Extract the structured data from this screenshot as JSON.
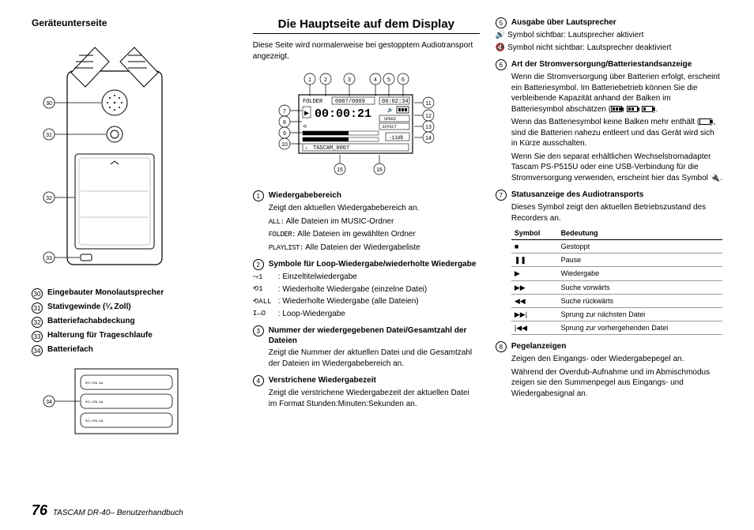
{
  "footer": {
    "page_num": "76",
    "book_title": "TASCAM DR-40– Benutzerhandbuch"
  },
  "col1": {
    "heading": "Geräteunterseite",
    "callouts": [
      {
        "n": "30",
        "label": "Eingebauter Monolautsprecher"
      },
      {
        "n": "31",
        "label": "Stativgewinde (¼ Zoll)"
      },
      {
        "n": "32",
        "label": "Batteriefachabdeckung"
      },
      {
        "n": "33",
        "label": "Halterung für Trageschlaufe"
      },
      {
        "n": "34",
        "label": "Batteriefach"
      }
    ]
  },
  "col2": {
    "section_title": "Die Hauptseite auf dem Display",
    "intro": "Diese Seite wird normalerweise bei gestopptem Audiotransport angezeigt.",
    "lcd": {
      "time": "00:00:21",
      "folder": "FOLDER",
      "count": "0007/0009",
      "dur": "00:02:34",
      "speed": "SPEED",
      "effect": "EFFECT",
      "db": "-11dB",
      "file": "TASCAM_0007"
    },
    "nums_top": [
      "1",
      "2",
      "3",
      "4",
      "5",
      "6"
    ],
    "nums_left": [
      "7",
      "8",
      "9",
      "10"
    ],
    "nums_right": [
      "11",
      "12",
      "13",
      "14"
    ],
    "nums_bottom": [
      "15",
      "16"
    ],
    "items": [
      {
        "n": "1",
        "title": "Wiedergabebereich",
        "lines": [
          "Zeigt den aktuellen Wiedergabebereich an.",
          {
            "mono": "ALL:",
            "text": " Alle Dateien im MUSIC-Ordner"
          },
          {
            "mono": "FOLDER:",
            "text": " Alle Dateien im gewählten Ordner"
          },
          {
            "mono": "PLAYLIST:",
            "text": " Alle Dateien der Wiedergabeliste"
          }
        ]
      },
      {
        "n": "2",
        "title": "Symbole für Loop-Wiedergabe/wiederholte Wiedergabe",
        "subs": [
          {
            "sym": "⤳1",
            "text": ": Einzeltitelwiedergabe"
          },
          {
            "sym": "⟲1",
            "text": ": Wiederholte Wiedergabe (einzelne Datei)"
          },
          {
            "sym": "⟲ALL",
            "text": ": Wiederholte Wiedergabe (alle Dateien)"
          },
          {
            "sym": "I↔O",
            "text": ": Loop-Wiedergabe"
          }
        ]
      },
      {
        "n": "3",
        "title": "Nummer der wiedergegebenen Datei/Gesamtzahl der Dateien",
        "lines": [
          "Zeigt die Nummer der aktuellen Datei und die Gesamtzahl der Dateien im Wiedergabebereich an."
        ]
      },
      {
        "n": "4",
        "title": "Verstrichene Wiedergabezeit",
        "lines": [
          "Zeigt die verstrichene Wiedergabezeit der aktuellen Datei im Format Stunden:Minuten:Sekunden an."
        ]
      }
    ]
  },
  "col3": {
    "items": [
      {
        "n": "5",
        "title": "Ausgabe über Lautsprecher",
        "subs": [
          {
            "icon": "🔊",
            "text": "Symbol sichtbar: Lautsprecher aktiviert"
          },
          {
            "icon": "🔇",
            "text": "Symbol nicht sichtbar: Lautsprecher deaktiviert"
          }
        ]
      },
      {
        "n": "6",
        "title": "Art der Stromversorgung/Batteriestandsan­zeige",
        "paras": [
          "Wenn die Stromversorgung über Batterien erfolgt, erscheint ein Batteriesymbol. Im Batteriebetrieb können Sie die verbleibende Kapazität anhand der Balken im Batteriesymbol abschätzen (BATT3, BATT2, BATT1).",
          "Wenn das Batteriesymbol keine Balken mehr enthält (BATT0), sind die Batterien nahezu entleert und das Gerät wird sich in Kürze ausschalten.",
          "Wenn Sie den separat erhältlichen Wechselstromadapter Tascam PS-P515U oder eine USB-Verbindung für die Stromversorgung verwenden, erscheint hier das Symbol PLUG."
        ]
      },
      {
        "n": "7",
        "title": "Statusanzeige des Audiotransports",
        "lines": [
          "Dieses Symbol zeigt den aktuellen Betriebszustand des Recorders an."
        ],
        "table": {
          "headers": [
            "Symbol",
            "Bedeutung"
          ],
          "rows": [
            {
              "sym": "■",
              "text": "Gestoppt"
            },
            {
              "sym": "❚❚",
              "text": "Pause"
            },
            {
              "sym": "▶",
              "text": "Wiedergabe"
            },
            {
              "sym": "▶▶",
              "text": "Suche vorwärts"
            },
            {
              "sym": "◀◀",
              "text": "Suche rückwärts"
            },
            {
              "sym": "▶▶|",
              "text": "Sprung zur nächsten Datei"
            },
            {
              "sym": "|◀◀",
              "text": "Sprung zur vorhergehenden Datei"
            }
          ]
        }
      },
      {
        "n": "8",
        "title": "Pegelanzeigen",
        "lines": [
          "Zeigen den Eingangs- oder Wiedergabepegel an.",
          "Während der Overdub-Aufnahme und im Abmischmodus zeigen sie den Summenpegel aus Eingangs- und Wiedergabesignal an."
        ]
      }
    ]
  }
}
